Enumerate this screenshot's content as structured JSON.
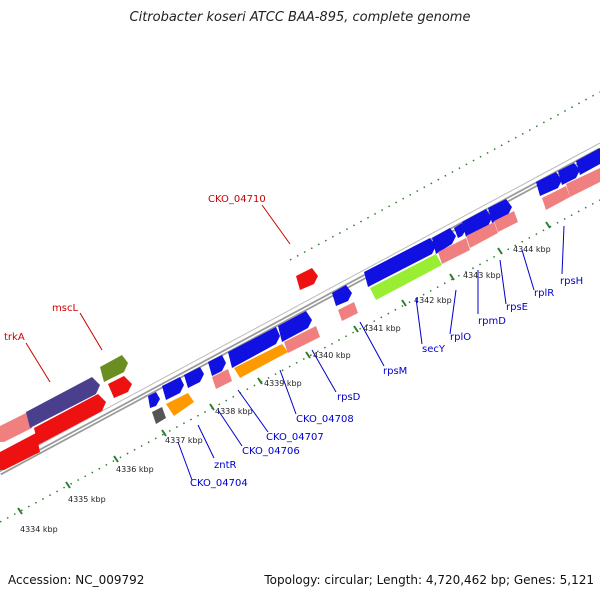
{
  "title": "Citrobacter koseri ATCC BAA-895, complete genome",
  "footer": {
    "accession": "Accession: NC_009792",
    "summary": "Topology: circular; Length: 4,720,462 bp; Genes: 5,121"
  },
  "colors": {
    "blue_gene": "#1010e0",
    "red_gene": "#ee1111",
    "orange_gene": "#ff9900",
    "pink_gene": "#f08080",
    "green_gene": "#99ee33",
    "olive_gene": "#6b8e23",
    "purple_gene": "#4a3f8c",
    "gray_gene": "#555555",
    "backbone": "#888888",
    "tick_green": "#2e7d32",
    "label_blue": "#0000cc",
    "label_red": "#cc0000"
  },
  "ticks": [
    {
      "label": "4334 kbp"
    },
    {
      "label": "4335 kbp"
    },
    {
      "label": "4336 kbp"
    },
    {
      "label": "4337 kbp"
    },
    {
      "label": "4338 kbp"
    },
    {
      "label": "4339 kbp"
    },
    {
      "label": "4340 kbp"
    },
    {
      "label": "4341 kbp"
    },
    {
      "label": "4342 kbp"
    },
    {
      "label": "4343 kbp"
    },
    {
      "label": "4344 kbp"
    }
  ],
  "labels": {
    "red": [
      "CKO_04710",
      "mscL",
      "trkA"
    ],
    "blue": [
      "CKO_04704",
      "zntR",
      "CKO_04706",
      "CKO_04707",
      "CKO_04708",
      "rpsD",
      "rpsM",
      "secY",
      "rplO",
      "rpmD",
      "rpsE",
      "rplR",
      "rpsH"
    ]
  }
}
